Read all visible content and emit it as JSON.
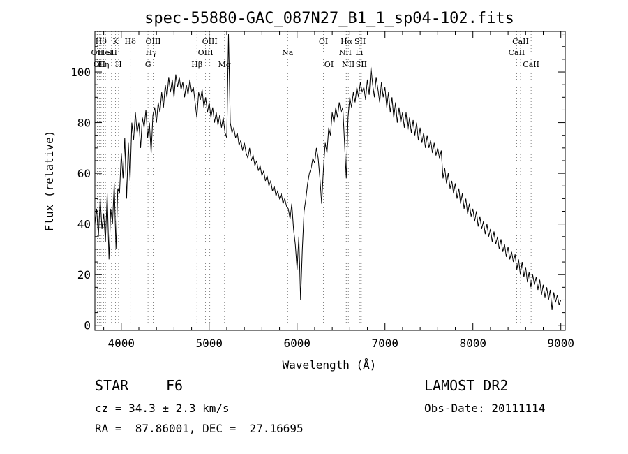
{
  "chart_data": {
    "type": "line",
    "title": "spec-55880-GAC_087N27_B1_1_sp04-102.fits",
    "xlabel": "Wavelength (Å)",
    "ylabel": "Flux (relative)",
    "xlim": [
      3700,
      9050
    ],
    "ylim": [
      -2,
      116
    ],
    "xticks": [
      4000,
      5000,
      6000,
      7000,
      8000,
      9000
    ],
    "yticks": [
      0,
      20,
      40,
      60,
      80,
      100
    ],
    "grid": false,
    "series": [
      {
        "points": [
          [
            3700,
            40
          ],
          [
            3720,
            46
          ],
          [
            3740,
            35
          ],
          [
            3760,
            50
          ],
          [
            3780,
            38
          ],
          [
            3800,
            44
          ],
          [
            3820,
            33
          ],
          [
            3840,
            52
          ],
          [
            3860,
            26
          ],
          [
            3880,
            46
          ],
          [
            3900,
            40
          ],
          [
            3920,
            56
          ],
          [
            3940,
            30
          ],
          [
            3960,
            54
          ],
          [
            3980,
            52
          ],
          [
            4000,
            68
          ],
          [
            4020,
            58
          ],
          [
            4040,
            74
          ],
          [
            4060,
            50
          ],
          [
            4080,
            72
          ],
          [
            4100,
            57
          ],
          [
            4120,
            80
          ],
          [
            4140,
            73
          ],
          [
            4160,
            84
          ],
          [
            4180,
            76
          ],
          [
            4200,
            80
          ],
          [
            4220,
            70
          ],
          [
            4240,
            82
          ],
          [
            4260,
            78
          ],
          [
            4280,
            85
          ],
          [
            4300,
            74
          ],
          [
            4320,
            80
          ],
          [
            4340,
            68
          ],
          [
            4360,
            83
          ],
          [
            4380,
            86
          ],
          [
            4400,
            80
          ],
          [
            4420,
            88
          ],
          [
            4440,
            84
          ],
          [
            4460,
            92
          ],
          [
            4480,
            86
          ],
          [
            4500,
            95
          ],
          [
            4520,
            90
          ],
          [
            4540,
            98
          ],
          [
            4560,
            92
          ],
          [
            4580,
            97
          ],
          [
            4600,
            90
          ],
          [
            4620,
            99
          ],
          [
            4640,
            94
          ],
          [
            4660,
            98
          ],
          [
            4680,
            93
          ],
          [
            4700,
            96
          ],
          [
            4720,
            90
          ],
          [
            4740,
            95
          ],
          [
            4760,
            91
          ],
          [
            4780,
            97
          ],
          [
            4800,
            92
          ],
          [
            4820,
            94
          ],
          [
            4840,
            88
          ],
          [
            4860,
            82
          ],
          [
            4880,
            92
          ],
          [
            4900,
            89
          ],
          [
            4920,
            93
          ],
          [
            4940,
            86
          ],
          [
            4960,
            90
          ],
          [
            4980,
            84
          ],
          [
            5000,
            88
          ],
          [
            5020,
            82
          ],
          [
            5040,
            86
          ],
          [
            5060,
            80
          ],
          [
            5080,
            84
          ],
          [
            5100,
            79
          ],
          [
            5120,
            83
          ],
          [
            5140,
            78
          ],
          [
            5160,
            82
          ],
          [
            5180,
            76
          ],
          [
            5200,
            74
          ],
          [
            5220,
            115
          ],
          [
            5240,
            80
          ],
          [
            5260,
            76
          ],
          [
            5280,
            78
          ],
          [
            5300,
            74
          ],
          [
            5320,
            76
          ],
          [
            5340,
            71
          ],
          [
            5360,
            73
          ],
          [
            5380,
            69
          ],
          [
            5400,
            72
          ],
          [
            5420,
            68
          ],
          [
            5440,
            66
          ],
          [
            5460,
            70
          ],
          [
            5480,
            65
          ],
          [
            5500,
            67
          ],
          [
            5520,
            63
          ],
          [
            5540,
            65
          ],
          [
            5560,
            61
          ],
          [
            5580,
            63
          ],
          [
            5600,
            59
          ],
          [
            5620,
            61
          ],
          [
            5640,
            57
          ],
          [
            5660,
            59
          ],
          [
            5680,
            55
          ],
          [
            5700,
            57
          ],
          [
            5720,
            53
          ],
          [
            5740,
            55
          ],
          [
            5760,
            51
          ],
          [
            5780,
            53
          ],
          [
            5800,
            50
          ],
          [
            5820,
            52
          ],
          [
            5840,
            48
          ],
          [
            5860,
            50
          ],
          [
            5880,
            47
          ],
          [
            5900,
            46
          ],
          [
            5920,
            42
          ],
          [
            5940,
            48
          ],
          [
            5960,
            38
          ],
          [
            5980,
            32
          ],
          [
            6000,
            22
          ],
          [
            6020,
            35
          ],
          [
            6040,
            10
          ],
          [
            6060,
            30
          ],
          [
            6080,
            45
          ],
          [
            6100,
            50
          ],
          [
            6120,
            56
          ],
          [
            6140,
            60
          ],
          [
            6160,
            62
          ],
          [
            6180,
            66
          ],
          [
            6200,
            64
          ],
          [
            6220,
            70
          ],
          [
            6240,
            66
          ],
          [
            6260,
            58
          ],
          [
            6280,
            48
          ],
          [
            6300,
            62
          ],
          [
            6320,
            72
          ],
          [
            6340,
            68
          ],
          [
            6360,
            78
          ],
          [
            6380,
            75
          ],
          [
            6400,
            84
          ],
          [
            6420,
            80
          ],
          [
            6440,
            86
          ],
          [
            6460,
            82
          ],
          [
            6480,
            88
          ],
          [
            6500,
            84
          ],
          [
            6520,
            86
          ],
          [
            6540,
            72
          ],
          [
            6560,
            58
          ],
          [
            6580,
            82
          ],
          [
            6600,
            90
          ],
          [
            6620,
            86
          ],
          [
            6640,
            92
          ],
          [
            6660,
            88
          ],
          [
            6680,
            94
          ],
          [
            6700,
            90
          ],
          [
            6720,
            96
          ],
          [
            6740,
            92
          ],
          [
            6760,
            94
          ],
          [
            6780,
            89
          ],
          [
            6800,
            97
          ],
          [
            6820,
            91
          ],
          [
            6840,
            102
          ],
          [
            6860,
            95
          ],
          [
            6880,
            90
          ],
          [
            6900,
            98
          ],
          [
            6920,
            93
          ],
          [
            6940,
            88
          ],
          [
            6960,
            96
          ],
          [
            6980,
            90
          ],
          [
            7000,
            94
          ],
          [
            7020,
            86
          ],
          [
            7040,
            92
          ],
          [
            7060,
            84
          ],
          [
            7080,
            90
          ],
          [
            7100,
            82
          ],
          [
            7120,
            88
          ],
          [
            7140,
            80
          ],
          [
            7160,
            86
          ],
          [
            7180,
            80
          ],
          [
            7200,
            84
          ],
          [
            7220,
            78
          ],
          [
            7240,
            84
          ],
          [
            7260,
            77
          ],
          [
            7280,
            82
          ],
          [
            7300,
            76
          ],
          [
            7320,
            81
          ],
          [
            7340,
            75
          ],
          [
            7360,
            80
          ],
          [
            7380,
            73
          ],
          [
            7400,
            78
          ],
          [
            7420,
            72
          ],
          [
            7440,
            76
          ],
          [
            7460,
            70
          ],
          [
            7480,
            75
          ],
          [
            7500,
            70
          ],
          [
            7520,
            73
          ],
          [
            7540,
            68
          ],
          [
            7560,
            72
          ],
          [
            7580,
            67
          ],
          [
            7600,
            70
          ],
          [
            7620,
            66
          ],
          [
            7640,
            69
          ],
          [
            7660,
            58
          ],
          [
            7680,
            62
          ],
          [
            7700,
            56
          ],
          [
            7720,
            60
          ],
          [
            7740,
            54
          ],
          [
            7760,
            57
          ],
          [
            7780,
            52
          ],
          [
            7800,
            56
          ],
          [
            7820,
            50
          ],
          [
            7840,
            54
          ],
          [
            7860,
            48
          ],
          [
            7880,
            52
          ],
          [
            7900,
            46
          ],
          [
            7920,
            50
          ],
          [
            7940,
            44
          ],
          [
            7960,
            48
          ],
          [
            7980,
            43
          ],
          [
            8000,
            46
          ],
          [
            8020,
            41
          ],
          [
            8040,
            45
          ],
          [
            8060,
            39
          ],
          [
            8080,
            43
          ],
          [
            8100,
            38
          ],
          [
            8120,
            41
          ],
          [
            8140,
            36
          ],
          [
            8160,
            40
          ],
          [
            8180,
            35
          ],
          [
            8200,
            38
          ],
          [
            8220,
            33
          ],
          [
            8240,
            37
          ],
          [
            8260,
            32
          ],
          [
            8280,
            35
          ],
          [
            8300,
            30
          ],
          [
            8320,
            34
          ],
          [
            8340,
            29
          ],
          [
            8360,
            32
          ],
          [
            8380,
            27
          ],
          [
            8400,
            31
          ],
          [
            8420,
            26
          ],
          [
            8440,
            29
          ],
          [
            8460,
            25
          ],
          [
            8480,
            28
          ],
          [
            8500,
            22
          ],
          [
            8520,
            26
          ],
          [
            8540,
            20
          ],
          [
            8560,
            25
          ],
          [
            8580,
            19
          ],
          [
            8600,
            23
          ],
          [
            8620,
            17
          ],
          [
            8640,
            21
          ],
          [
            8660,
            15
          ],
          [
            8680,
            20
          ],
          [
            8700,
            16
          ],
          [
            8720,
            19
          ],
          [
            8740,
            14
          ],
          [
            8760,
            18
          ],
          [
            8780,
            12
          ],
          [
            8800,
            16
          ],
          [
            8820,
            11
          ],
          [
            8840,
            15
          ],
          [
            8860,
            10
          ],
          [
            8880,
            14
          ],
          [
            8900,
            6
          ],
          [
            8920,
            13
          ],
          [
            8940,
            9
          ],
          [
            8960,
            12
          ],
          [
            8980,
            8
          ],
          [
            9000,
            10
          ]
        ]
      }
    ],
    "line_markers": [
      {
        "wavelength": 3727,
        "label": "OII",
        "row": 2
      },
      {
        "wavelength": 3750,
        "label": "OII",
        "row": 3
      },
      {
        "wavelength": 3770,
        "label": "Hθ",
        "row": 1
      },
      {
        "wavelength": 3798,
        "label": "Hη",
        "row": 3
      },
      {
        "wavelength": 3820,
        "label": "HeI",
        "row": 2
      },
      {
        "wavelength": 3889,
        "label": "SII",
        "row": 2
      },
      {
        "wavelength": 3934,
        "label": "K",
        "row": 1
      },
      {
        "wavelength": 3969,
        "label": "H",
        "row": 3
      },
      {
        "wavelength": 4102,
        "label": "Hδ",
        "row": 1
      },
      {
        "wavelength": 4304,
        "label": "G",
        "row": 3
      },
      {
        "wavelength": 4340,
        "label": "Hγ",
        "row": 2
      },
      {
        "wavelength": 4363,
        "label": "OIII",
        "row": 1
      },
      {
        "wavelength": 4861,
        "label": "Hβ",
        "row": 3
      },
      {
        "wavelength": 4959,
        "label": "OIII",
        "row": 2
      },
      {
        "wavelength": 5007,
        "label": "OIII",
        "row": 1
      },
      {
        "wavelength": 5175,
        "label": "Mg",
        "row": 3
      },
      {
        "wavelength": 5893,
        "label": "Na",
        "row": 2
      },
      {
        "wavelength": 6300,
        "label": "OI",
        "row": 1
      },
      {
        "wavelength": 6363,
        "label": "OI",
        "row": 3
      },
      {
        "wavelength": 6548,
        "label": "NII",
        "row": 2
      },
      {
        "wavelength": 6563,
        "label": "Hα",
        "row": 1
      },
      {
        "wavelength": 6583,
        "label": "NII",
        "row": 3
      },
      {
        "wavelength": 6707,
        "label": "Li",
        "row": 2
      },
      {
        "wavelength": 6717,
        "label": "SII",
        "row": 1
      },
      {
        "wavelength": 6731,
        "label": "SII",
        "row": 3
      },
      {
        "wavelength": 8498,
        "label": "CaII",
        "row": 2
      },
      {
        "wavelength": 8542,
        "label": "CaII",
        "row": 1
      },
      {
        "wavelength": 8662,
        "label": "CaII",
        "row": 3
      }
    ]
  },
  "info": {
    "object_type": "STAR",
    "subclass": "F6",
    "survey": "LAMOST DR2",
    "redshift_line": "cz = 34.3 ± 2.3 km/s",
    "obs_date_line": "Obs-Date: 20111114",
    "coords_line": "RA =  87.86001, DEC =  27.16695"
  }
}
